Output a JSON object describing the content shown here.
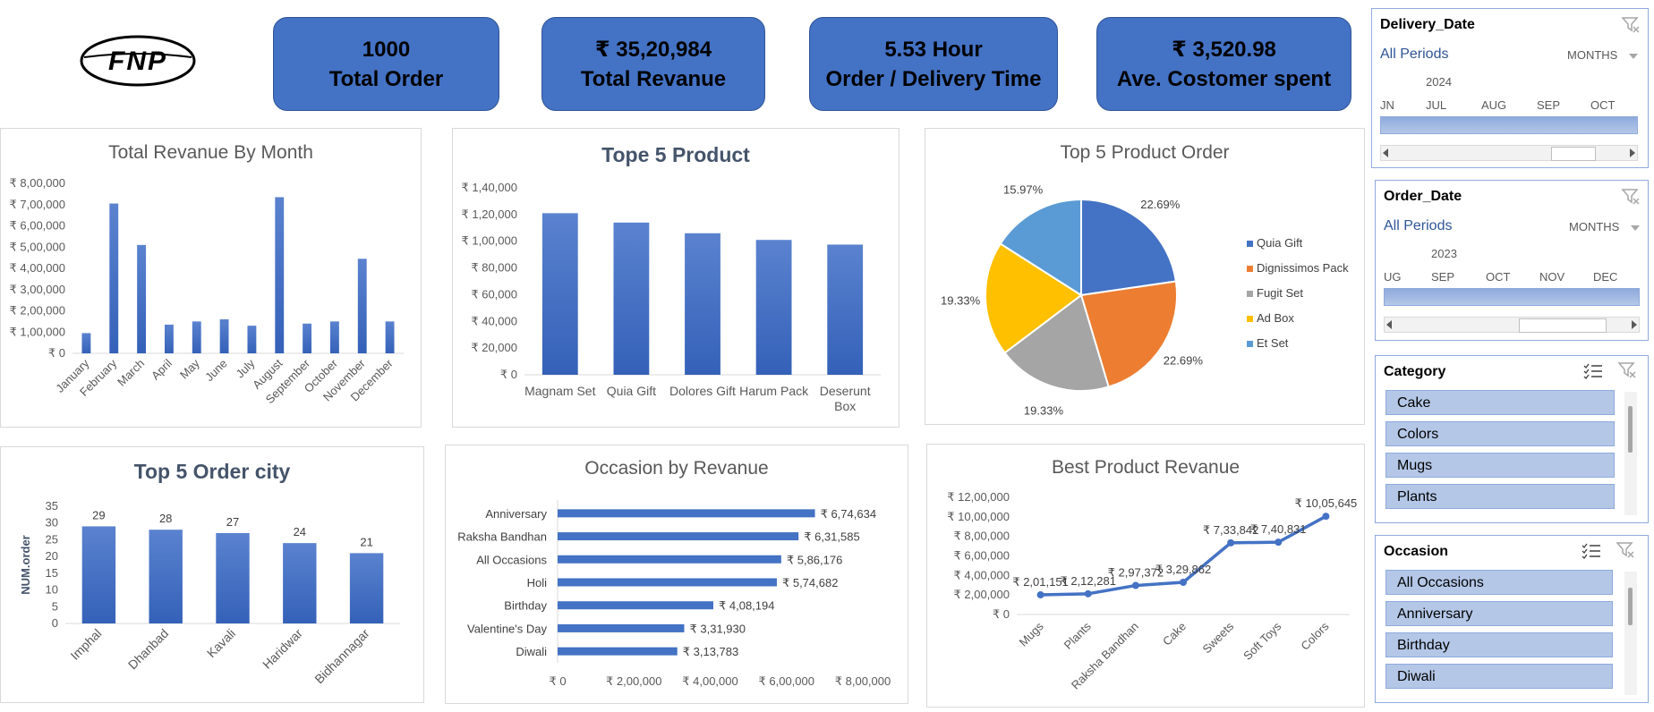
{
  "logo": {
    "text": "FNP"
  },
  "kpis": [
    {
      "value": "1000",
      "label": "Total Order"
    },
    {
      "value": "₹ 35,20,984",
      "label": "Total Revanue"
    },
    {
      "value": "5.53 Hour",
      "label": "Order / Delivery Time"
    },
    {
      "value": "₹ 3,520.98",
      "label": "Ave. Costomer spent"
    }
  ],
  "chart_data": [
    {
      "id": "revenue-by-month",
      "type": "bar",
      "title": "Total Revanue By Month",
      "categories": [
        "January",
        "February",
        "March",
        "April",
        "May",
        "June",
        "July",
        "August",
        "September",
        "October",
        "November",
        "December"
      ],
      "values": [
        95000,
        705000,
        510000,
        135000,
        150000,
        160000,
        130000,
        735000,
        140000,
        150000,
        445000,
        150000
      ],
      "ylim": [
        0,
        800000
      ],
      "yticks": [
        "₹ 0",
        "₹ 1,00,000",
        "₹ 2,00,000",
        "₹ 3,00,000",
        "₹ 4,00,000",
        "₹ 5,00,000",
        "₹ 6,00,000",
        "₹ 7,00,000",
        "₹ 8,00,000"
      ]
    },
    {
      "id": "top-5-product",
      "type": "bar",
      "title": "Tope 5 Product",
      "categories": [
        "Magnam Set",
        "Quia Gift",
        "Dolores Gift",
        "Harum Pack",
        "Deserunt Box"
      ],
      "values": [
        121000,
        114000,
        106000,
        101000,
        97500
      ],
      "ylim": [
        0,
        140000
      ],
      "yticks": [
        "₹ 0",
        "₹ 20,000",
        "₹ 40,000",
        "₹ 60,000",
        "₹ 80,000",
        "₹ 1,00,000",
        "₹ 1,20,000",
        "₹ 1,40,000"
      ]
    },
    {
      "id": "top-5-product-order",
      "type": "pie",
      "title": "Top 5 Product Order",
      "labels": [
        "Quia Gift",
        "Dignissimos Pack",
        "Fugit Set",
        "Ad Box",
        "Et Set"
      ],
      "values": [
        22.69,
        22.69,
        19.33,
        19.33,
        15.97
      ],
      "value_labels": [
        "22.69%",
        "22.69%",
        "19.33%",
        "19.33%",
        "15.97%"
      ],
      "colors": [
        "#4472c4",
        "#ed7d31",
        "#a5a5a5",
        "#ffc000",
        "#5b9bd5"
      ],
      "legend": "right"
    },
    {
      "id": "top-5-order-city",
      "type": "bar",
      "title": "Top 5 Order city",
      "categories": [
        "Imphal",
        "Dhanbad",
        "Kavali",
        "Haridwar",
        "Bidhannagar"
      ],
      "values": [
        29,
        28,
        27,
        24,
        21
      ],
      "value_labels": [
        "29",
        "28",
        "27",
        "24",
        "21"
      ],
      "ylabel": "NUM.order",
      "ylim": [
        0,
        35
      ],
      "yticks": [
        "0",
        "5",
        "10",
        "15",
        "20",
        "25",
        "30",
        "35"
      ]
    },
    {
      "id": "occasion-by-revenue",
      "type": "bar",
      "orientation": "horizontal",
      "title": "Occasion by Revanue",
      "categories": [
        "Anniversary",
        "Raksha Bandhan",
        "All Occasions",
        "Holi",
        "Birthday",
        "Valentine's Day",
        "Diwali"
      ],
      "values": [
        674634,
        631585,
        586176,
        574682,
        408194,
        331930,
        313783
      ],
      "value_labels": [
        "₹ 6,74,634",
        "₹ 6,31,585",
        "₹ 5,86,176",
        "₹ 5,74,682",
        "₹ 4,08,194",
        "₹ 3,31,930",
        "₹ 3,13,783"
      ],
      "xlim": [
        0,
        800000
      ],
      "xticks": [
        "₹ 0",
        "₹ 2,00,000",
        "₹ 4,00,000",
        "₹ 6,00,000",
        "₹ 8,00,000"
      ]
    },
    {
      "id": "best-product-revenue",
      "type": "line",
      "title": "Best Product Revanue",
      "categories": [
        "Mugs",
        "Plants",
        "Raksha Bandhan",
        "Cake",
        "Sweets",
        "Soft Toys",
        "Colors"
      ],
      "values": [
        201151,
        212281,
        297372,
        329862,
        733842,
        740831,
        1005645
      ],
      "value_labels": [
        "₹ 2,01,151",
        "₹ 2,12,281",
        "₹ 2,97,372",
        "₹ 3,29,862",
        "₹ 7,33,842",
        "₹ 7,40,831",
        "₹ 10,05,645"
      ],
      "ylim": [
        0,
        1200000
      ],
      "yticks": [
        "₹ 0",
        "₹ 2,00,000",
        "₹ 4,00,000",
        "₹ 6,00,000",
        "₹ 8,00,000",
        "₹ 10,00,000",
        "₹ 12,00,000"
      ]
    }
  ],
  "timelines": [
    {
      "title": "Delivery_Date",
      "all_periods": "All Periods",
      "unit": "MONTHS",
      "year": "2024",
      "months": [
        "JN",
        "JUL",
        "AUG",
        "SEP",
        "OCT"
      ]
    },
    {
      "title": "Order_Date",
      "all_periods": "All Periods",
      "unit": "MONTHS",
      "year": "2023",
      "months": [
        "UG",
        "SEP",
        "OCT",
        "NOV",
        "DEC"
      ]
    }
  ],
  "slicers": [
    {
      "title": "Category",
      "items": [
        "Cake",
        "Colors",
        "Mugs",
        "Plants"
      ]
    },
    {
      "title": "Occasion",
      "items": [
        "All Occasions",
        "Anniversary",
        "Birthday",
        "Diwali"
      ]
    }
  ],
  "colors": {
    "accent": "#4472c4",
    "slicer_item": "#b4c7e7"
  }
}
